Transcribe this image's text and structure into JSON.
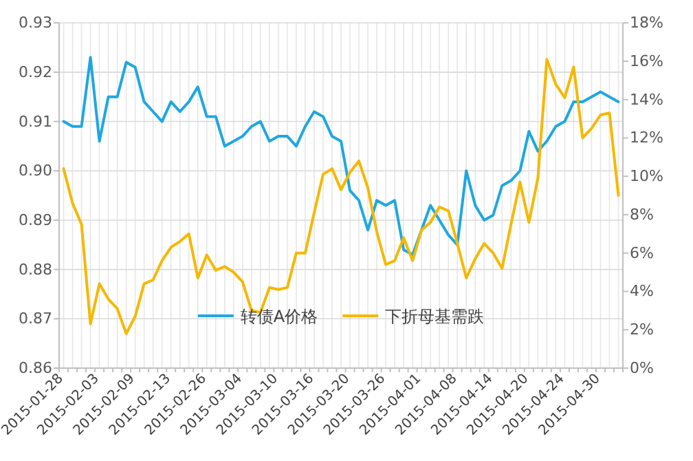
{
  "chart_data": {
    "type": "line",
    "categories": [
      "2015-01-28",
      null,
      null,
      null,
      "2015-02-03",
      null,
      null,
      null,
      "2015-02-09",
      null,
      null,
      null,
      "2015-02-13",
      null,
      null,
      null,
      "2015-02-26",
      null,
      null,
      null,
      "2015-03-04",
      null,
      null,
      null,
      "2015-03-10",
      null,
      null,
      null,
      "2015-03-16",
      null,
      null,
      null,
      "2015-03-20",
      null,
      null,
      null,
      "2015-03-26",
      null,
      null,
      null,
      "2015-04-01",
      null,
      null,
      null,
      "2015-04-08",
      null,
      null,
      null,
      "2015-04-14",
      null,
      null,
      null,
      "2015-04-20",
      null,
      null,
      null,
      "2015-04-24",
      null,
      null,
      null,
      "2015-04-30",
      null,
      null
    ],
    "series": [
      {
        "name": "转债A价格",
        "color": "#1fa7e0",
        "values": [
          0.91,
          0.909,
          0.909,
          0.923,
          0.906,
          0.915,
          0.915,
          0.922,
          0.921,
          0.914,
          0.912,
          0.91,
          0.914,
          0.912,
          0.914,
          0.917,
          0.911,
          0.911,
          0.905,
          0.906,
          0.907,
          0.909,
          0.91,
          0.906,
          0.907,
          0.907,
          0.905,
          0.909,
          0.912,
          0.911,
          0.907,
          0.906,
          0.896,
          0.894,
          0.888,
          0.894,
          0.893,
          0.894,
          0.884,
          0.883,
          0.888,
          0.893,
          0.89,
          0.887,
          0.885,
          0.9,
          0.893,
          0.89,
          0.891,
          0.897,
          0.898,
          0.9,
          0.908,
          0.904,
          0.906,
          0.909,
          0.91,
          0.914,
          0.914,
          0.915,
          0.916,
          0.915,
          0.914
        ]
      },
      {
        "name": "下折母基需跌",
        "color": "#f5b800",
        "axis": "y2",
        "values": [
          10.4,
          8.6,
          7.5,
          2.3,
          4.4,
          3.6,
          3.1,
          1.8,
          2.7,
          4.4,
          4.6,
          5.6,
          6.3,
          6.6,
          7.0,
          4.7,
          5.9,
          5.1,
          5.3,
          5.0,
          4.5,
          3.0,
          2.9,
          4.2,
          4.1,
          4.2,
          6.0,
          6.0,
          8.1,
          10.1,
          10.4,
          9.3,
          10.2,
          10.8,
          9.4,
          7.1,
          5.4,
          5.6,
          6.8,
          5.6,
          7.2,
          7.6,
          8.4,
          8.2,
          6.5,
          4.7,
          5.7,
          6.5,
          6.0,
          5.2,
          7.5,
          9.7,
          7.6,
          9.9,
          16.1,
          14.8,
          14.1,
          15.7,
          12.0,
          12.5,
          13.2,
          13.3,
          9.0
        ]
      }
    ],
    "ylim": [
      0.86,
      0.93
    ],
    "yticks": [
      {
        "value": 0.86,
        "label": "0.86"
      },
      {
        "value": 0.87,
        "label": "0.87"
      },
      {
        "value": 0.88,
        "label": "0.88"
      },
      {
        "value": 0.89,
        "label": "0.89"
      },
      {
        "value": 0.9,
        "label": "0.90"
      },
      {
        "value": 0.91,
        "label": "0.91"
      },
      {
        "value": 0.92,
        "label": "0.92"
      },
      {
        "value": 0.93,
        "label": "0.93"
      }
    ],
    "y2lim": [
      0,
      18
    ],
    "y2ticks": [
      {
        "value": 0,
        "label": "0%"
      },
      {
        "value": 2,
        "label": "2%"
      },
      {
        "value": 4,
        "label": "4%"
      },
      {
        "value": 6,
        "label": "6%"
      },
      {
        "value": 8,
        "label": "8%"
      },
      {
        "value": 10,
        "label": "10%"
      },
      {
        "value": 12,
        "label": "12%"
      },
      {
        "value": 14,
        "label": "14%"
      },
      {
        "value": 16,
        "label": "16%"
      },
      {
        "value": 18,
        "label": "18%"
      }
    ],
    "grid": true,
    "legend": "bottom"
  }
}
